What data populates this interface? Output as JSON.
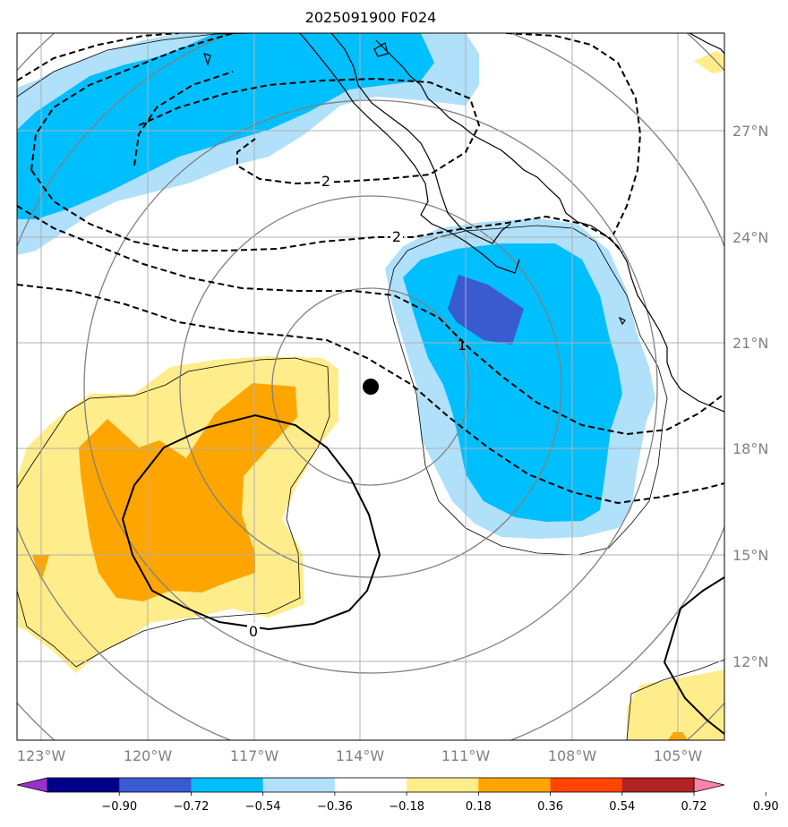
{
  "title": "2025091900 F024",
  "lon_labels": [
    "123°W",
    "120°W",
    "117°W",
    "114°W",
    "111°W",
    "108°W",
    "105°W"
  ],
  "lat_labels": [
    "27°N",
    "24°N",
    "21°N",
    "18°N",
    "15°N",
    "12°N"
  ],
  "contour_labels": [
    "2",
    "2",
    "1",
    "0"
  ],
  "colorbar": {
    "labels": [
      "−0.90",
      "−0.72",
      "−0.54",
      "−0.36",
      "−0.18",
      "0.18",
      "0.36",
      "0.54",
      "0.72",
      "0.90"
    ],
    "colors": [
      "#9b30d0",
      "#00008b",
      "#3a5bd0",
      "#00bfff",
      "#b0e0fa",
      "#ffffff",
      "#ffec8b",
      "#ffa500",
      "#ff4500",
      "#b22222",
      "#ff82ab"
    ]
  },
  "fill_colors": {
    "light_blue": "#b0e0fa",
    "blue": "#00bfff",
    "dark_blue": "#3a5bd0",
    "light_yellow": "#ffec8b",
    "orange": "#ffa500"
  }
}
